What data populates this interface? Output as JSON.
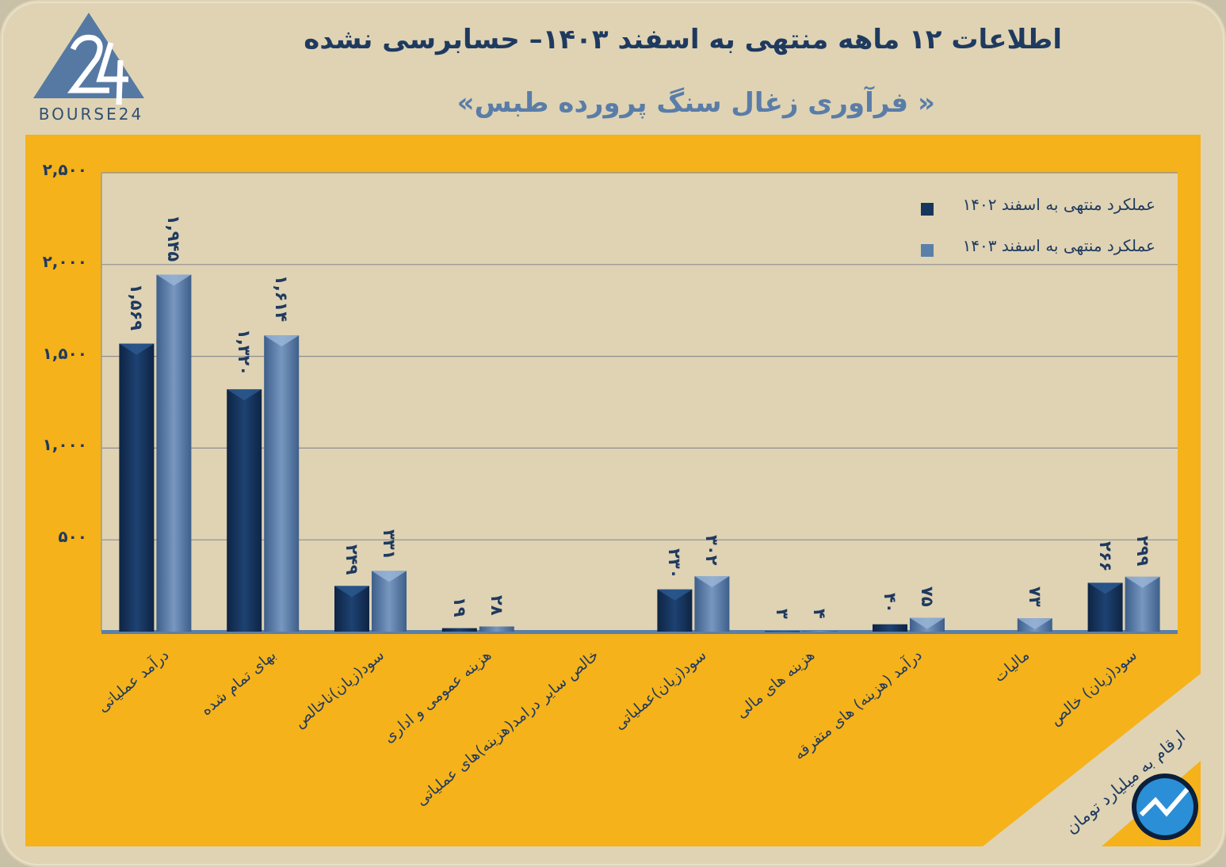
{
  "title": "اطلاعات ۱۲ ماهه منتهی به اسفند ۱۴۰۳– حسابرسی نشده",
  "subtitle": "« فرآوری زغال سنگ پرورده طبس»",
  "logo_text": "BOURSE24",
  "units_note": "ارقام به میلیارد تومان",
  "colors": {
    "series_1402": "#17365d",
    "series_1403": "#5b7fa8",
    "panel": "#f5b21a",
    "plot": "#dfd3b4"
  },
  "chart_data": {
    "type": "bar",
    "categories": [
      "درآمد عملیاتی",
      "بهای تمام شده",
      "سود(زیان)ناخالص",
      "هزینه عمومی و اداری",
      "خالص سایر درامد(هزینه)های عملیاتی",
      "سود(زیان)عملیاتی",
      "هزینه های مالی",
      "درآمد (هزینه) های متفرقه",
      "مالیات",
      "سود(زیان) خالص"
    ],
    "series": [
      {
        "name": "عملکرد منتهی به اسفند ۱۴۰۲",
        "values": [
          1569,
          1320,
          249,
          19,
          null,
          230,
          3,
          40,
          null,
          266
        ],
        "labels": [
          "۱,۵۶۹",
          "۱,۳۲۰",
          "۲۴۹",
          "۱۹",
          "",
          "۲۳۰",
          "۳",
          "۴۰",
          "",
          "۲۶۶"
        ]
      },
      {
        "name": "عملکرد منتهی به اسفند ۱۴۰۳",
        "values": [
          1945,
          1614,
          331,
          28,
          null,
          302,
          4,
          75,
          73,
          299
        ],
        "labels": [
          "۱,۹۴۵",
          "۱,۶۱۴",
          "۳۳۱",
          "۲۸",
          "",
          "۳۰۲",
          "۴",
          "۷۵",
          "۷۳",
          "۲۹۹"
        ]
      }
    ],
    "yticks": [
      "۵۰۰",
      "۱,۰۰۰",
      "۱,۵۰۰",
      "۲,۰۰۰",
      "۲,۵۰۰"
    ],
    "ytick_values": [
      500,
      1000,
      1500,
      2000,
      2500
    ],
    "ylim": [
      0,
      2500
    ],
    "legend": [
      "عملکرد منتهی به اسفند ۱۴۰۲",
      "عملکرد منتهی به اسفند ۱۴۰۳"
    ],
    "legend_position": "top-right"
  }
}
